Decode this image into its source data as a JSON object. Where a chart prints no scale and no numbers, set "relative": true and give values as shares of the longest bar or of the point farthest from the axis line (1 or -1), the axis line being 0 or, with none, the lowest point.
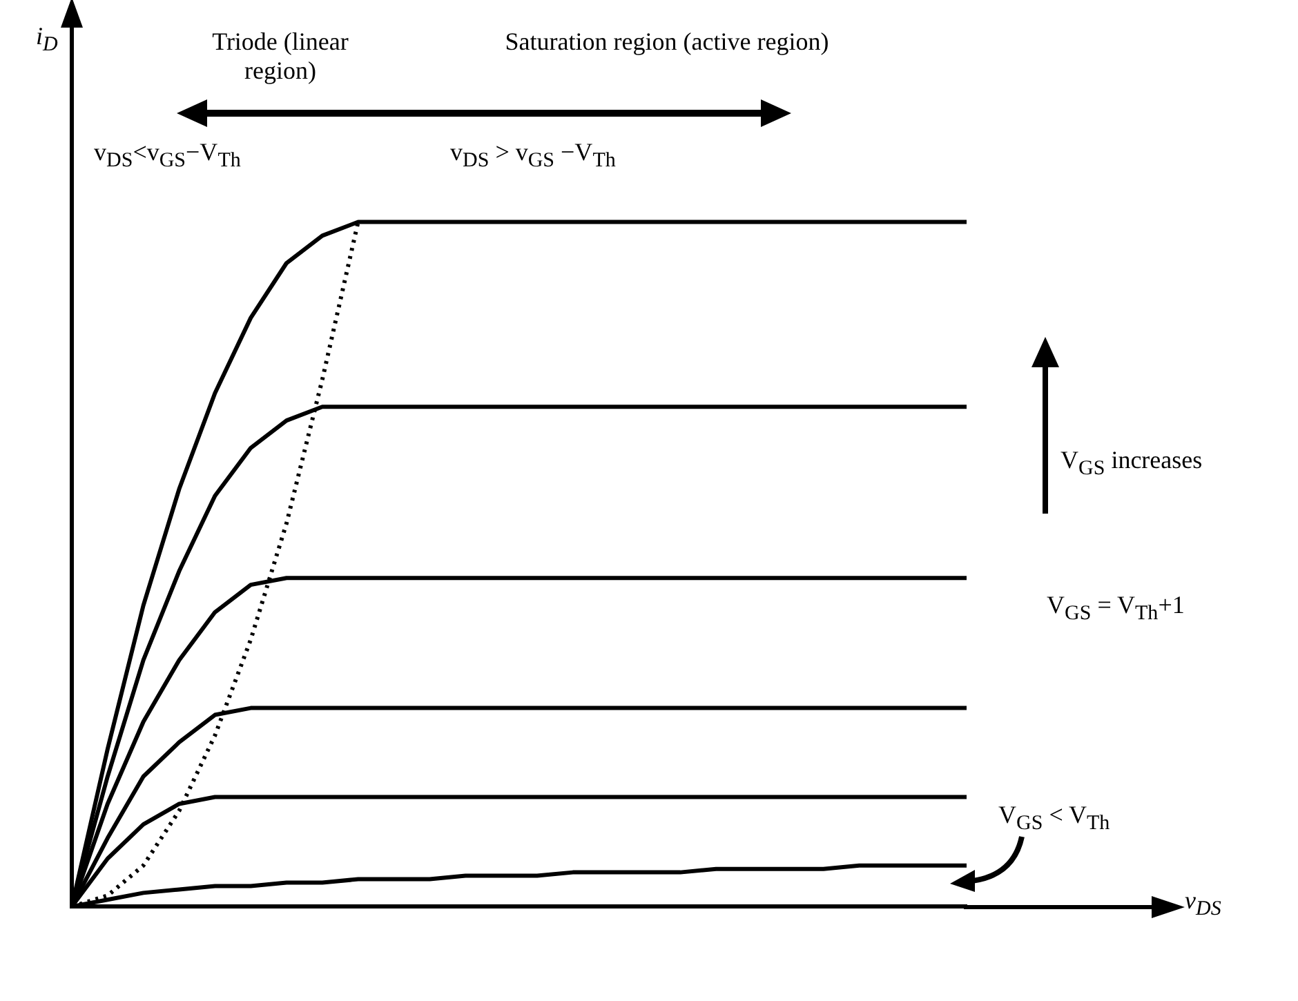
{
  "chart_data": {
    "type": "line",
    "relative": true,
    "categories": [
      null,
      null,
      null,
      null,
      null,
      null,
      null,
      null,
      null,
      null,
      null,
      null,
      null,
      null,
      null,
      null,
      null,
      null,
      null,
      null,
      null,
      null,
      null,
      null,
      null,
      null
    ],
    "series": [
      {
        "color": "#000000",
        "values": [
          0,
          0.23,
          0.44,
          0.61,
          0.75,
          0.86,
          0.94,
          0.98,
          1,
          1,
          1,
          1,
          1,
          1,
          1,
          1,
          1,
          1,
          1,
          1,
          1,
          1,
          1,
          1,
          1,
          1
        ]
      },
      {
        "color": "#000000",
        "values": [
          0,
          0.19,
          0.36,
          0.49,
          0.6,
          0.67,
          0.71,
          0.73,
          0.73,
          0.73,
          0.73,
          0.73,
          0.73,
          0.73,
          0.73,
          0.73,
          0.73,
          0.73,
          0.73,
          0.73,
          0.73,
          0.73,
          0.73,
          0.73,
          0.73,
          0.73
        ]
      },
      {
        "color": "#000000",
        "values": [
          0,
          0.15,
          0.27,
          0.36,
          0.43,
          0.47,
          0.48,
          0.48,
          0.48,
          0.48,
          0.48,
          0.48,
          0.48,
          0.48,
          0.48,
          0.48,
          0.48,
          0.48,
          0.48,
          0.48,
          0.48,
          0.48,
          0.48,
          0.48,
          0.48,
          0.48
        ]
      },
      {
        "color": "#000000",
        "values": [
          0,
          0.1,
          0.19,
          0.24,
          0.28,
          0.29,
          0.29,
          0.29,
          0.29,
          0.29,
          0.29,
          0.29,
          0.29,
          0.29,
          0.29,
          0.29,
          0.29,
          0.29,
          0.29,
          0.29,
          0.29,
          0.29,
          0.29,
          0.29,
          0.29,
          0.29
        ]
      },
      {
        "color": "#000000",
        "values": [
          0,
          0.07,
          0.12,
          0.15,
          0.16,
          0.16,
          0.16,
          0.16,
          0.16,
          0.16,
          0.16,
          0.16,
          0.16,
          0.16,
          0.16,
          0.16,
          0.16,
          0.16,
          0.16,
          0.16,
          0.16,
          0.16,
          0.16,
          0.16,
          0.16,
          0.16
        ]
      },
      {
        "color": "#000000",
        "values": [
          0,
          0.01,
          0.02,
          0.025,
          0.03,
          0.03,
          0.035,
          0.035,
          0.04,
          0.04,
          0.04,
          0.045,
          0.045,
          0.045,
          0.05,
          0.05,
          0.05,
          0.05,
          0.055,
          0.055,
          0.055,
          0.055,
          0.06,
          0.06,
          0.06,
          0.06
        ]
      },
      {
        "color": "#000000",
        "line_style": "dotted",
        "values": [
          0,
          0.016,
          0.06,
          0.14,
          0.25,
          0.39,
          0.56,
          0.77,
          1,
          null,
          null,
          null,
          null,
          null,
          null,
          null,
          null,
          null,
          null,
          null,
          null,
          null,
          null,
          null,
          null,
          null
        ]
      }
    ],
    "marker": "none",
    "line_style": "solid",
    "grid": false,
    "legend": false,
    "annotations": [
      "Triode (linear region)",
      "Saturation region (active region)",
      "v$_{DS}$<v$_{GS}$−V$_{Th}$",
      "v$_{DS}$ > v$_{GS}$ −V$_{Th}$",
      "V$_{GS}$ increases",
      "V$_{GS}$ = V$_{Th}$+1",
      "V$_{GS}$ < V$_{Th}$",
      "i$_{D}$",
      "v$_{DS}$"
    ]
  }
}
